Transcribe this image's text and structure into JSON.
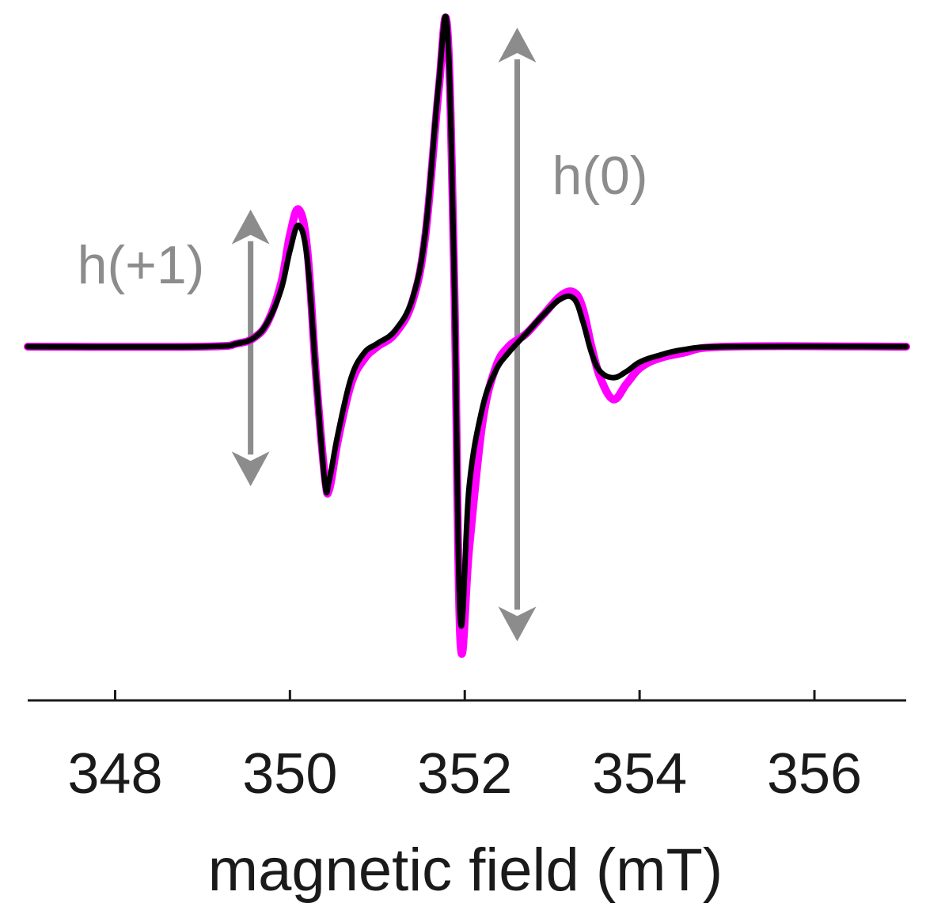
{
  "chart_data": {
    "type": "line",
    "title": "",
    "xlabel": "magnetic field (mT)",
    "ylabel": "",
    "xlim": [
      347.0,
      357.05
    ],
    "ylim": [
      -1.0,
      1.0
    ],
    "xticks": [
      348,
      350,
      352,
      354,
      356
    ],
    "xtick_labels": [
      "348",
      "350",
      "352",
      "354",
      "356"
    ],
    "grid": false,
    "legend": "none",
    "series": [
      {
        "color": "#ff00ff",
        "x": [
          347.0,
          349.0,
          349.4,
          349.6,
          349.75,
          349.9,
          350.0,
          350.1,
          350.2,
          350.3,
          350.4,
          350.45,
          350.55,
          350.7,
          350.85,
          351.0,
          351.2,
          351.4,
          351.55,
          351.7,
          351.8,
          351.88,
          351.95,
          352.05,
          352.2,
          352.35,
          352.5,
          352.7,
          352.9,
          353.1,
          353.25,
          353.35,
          353.45,
          353.55,
          353.7,
          353.85,
          354.0,
          354.2,
          354.5,
          355.0,
          357.05
        ],
        "y": [
          0.0,
          0.0,
          0.01,
          0.03,
          0.08,
          0.2,
          0.35,
          0.43,
          0.3,
          -0.1,
          -0.42,
          -0.46,
          -0.3,
          -0.12,
          -0.04,
          0.0,
          0.04,
          0.14,
          0.35,
          0.8,
          1.0,
          0.2,
          -0.95,
          -0.65,
          -0.25,
          -0.07,
          0.0,
          0.04,
          0.1,
          0.16,
          0.17,
          0.12,
          0.0,
          -0.1,
          -0.17,
          -0.12,
          -0.07,
          -0.04,
          -0.02,
          0.0,
          0.0
        ]
      },
      {
        "color": "#000000",
        "x": [
          347.0,
          349.0,
          349.4,
          349.6,
          349.75,
          349.9,
          350.0,
          350.1,
          350.2,
          350.3,
          350.4,
          350.45,
          350.55,
          350.7,
          350.85,
          351.0,
          351.2,
          351.4,
          351.55,
          351.7,
          351.8,
          351.88,
          351.95,
          352.05,
          352.2,
          352.35,
          352.5,
          352.7,
          352.9,
          353.1,
          353.25,
          353.35,
          353.45,
          353.55,
          353.7,
          353.85,
          354.0,
          354.2,
          354.5,
          355.0,
          357.05
        ],
        "y": [
          0.0,
          0.0,
          0.01,
          0.03,
          0.08,
          0.18,
          0.3,
          0.38,
          0.27,
          -0.1,
          -0.44,
          -0.43,
          -0.28,
          -0.1,
          -0.02,
          0.01,
          0.05,
          0.15,
          0.36,
          0.82,
          1.0,
          0.2,
          -0.88,
          -0.45,
          -0.2,
          -0.08,
          -0.02,
          0.04,
          0.1,
          0.15,
          0.15,
          0.08,
          -0.02,
          -0.08,
          -0.1,
          -0.08,
          -0.05,
          -0.03,
          -0.01,
          0.0,
          0.0
        ]
      }
    ],
    "annotations": [
      {
        "label": "h(+1)",
        "color": "#8c8c8c",
        "x": 349.55,
        "y_range": [
          -0.45,
          0.43
        ]
      },
      {
        "label": "h(0)",
        "color": "#8c8c8c",
        "x": 352.6,
        "y_range": [
          -0.95,
          1.0
        ]
      }
    ]
  }
}
